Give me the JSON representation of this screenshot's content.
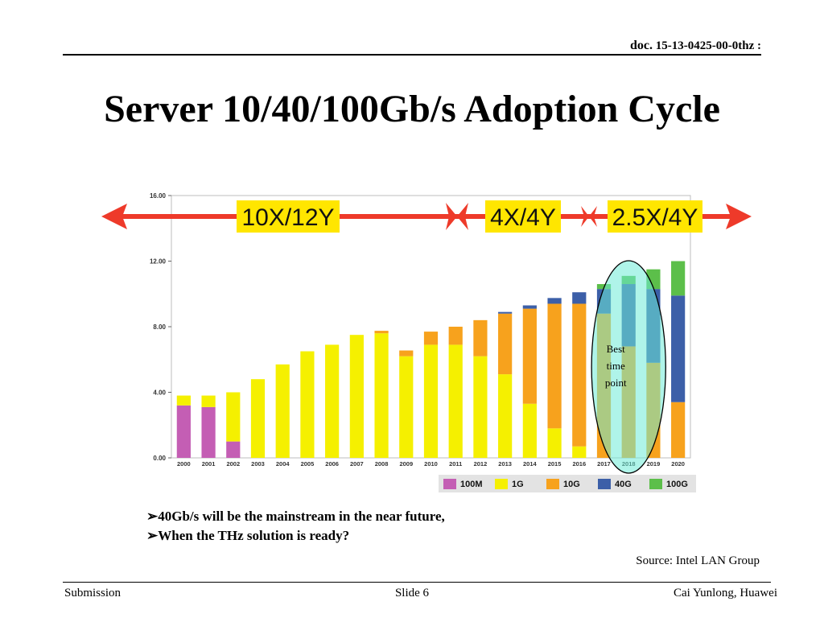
{
  "header": {
    "doc_prefix": "doc.",
    "doc_number": "15-13-0425-00-0thz :"
  },
  "slide": {
    "title": "Server 10/40/100Gb/s Adoption Cycle",
    "bullets": [
      "40Gb/s will be the mainstream in the near future,",
      "When the THz solution is ready?"
    ],
    "source": "Source: Intel LAN Group"
  },
  "footer": {
    "left": "Submission",
    "center": "Slide 6",
    "right": "Cai Yunlong, Huawei"
  },
  "chart_data": {
    "type": "bar",
    "stacked": true,
    "categories": [
      "2000",
      "2001",
      "2002",
      "2003",
      "2004",
      "2005",
      "2006",
      "2007",
      "2008",
      "2009",
      "2010",
      "2011",
      "2012",
      "2013",
      "2014",
      "2015",
      "2016",
      "2017",
      "2018",
      "2019",
      "2020"
    ],
    "ylim": [
      0,
      16
    ],
    "yticks": [
      "0.00",
      "4.00",
      "8.00",
      "12.00",
      "16.00"
    ],
    "series": [
      {
        "name": "100M",
        "color": "#c45eb4",
        "values": [
          3.2,
          3.1,
          1.0,
          0,
          0,
          0,
          0,
          0,
          0,
          0,
          0,
          0,
          0,
          0,
          0,
          0,
          0,
          0,
          0,
          0,
          0
        ]
      },
      {
        "name": "1G",
        "color": "#f5f000",
        "values": [
          0.6,
          0.7,
          3.0,
          4.8,
          5.7,
          6.5,
          6.9,
          7.5,
          7.6,
          6.2,
          6.9,
          6.9,
          6.2,
          5.1,
          3.3,
          1.8,
          0.7,
          0,
          0,
          0,
          0
        ]
      },
      {
        "name": "10G",
        "color": "#f7a21d",
        "values": [
          0,
          0,
          0,
          0,
          0,
          0,
          0,
          0,
          0.15,
          0.35,
          0.8,
          1.1,
          2.2,
          3.7,
          5.8,
          7.6,
          8.7,
          8.8,
          6.8,
          5.8,
          3.4
        ]
      },
      {
        "name": "40G",
        "color": "#3c5fa8",
        "values": [
          0,
          0,
          0,
          0,
          0,
          0,
          0,
          0,
          0,
          0,
          0,
          0,
          0,
          0.1,
          0.2,
          0.35,
          0.7,
          1.5,
          3.8,
          4.5,
          6.5
        ]
      },
      {
        "name": "100G",
        "color": "#5cbf4a",
        "values": [
          0,
          0,
          0,
          0,
          0,
          0,
          0,
          0,
          0,
          0,
          0,
          0,
          0,
          0,
          0,
          0,
          0,
          0.3,
          0.5,
          1.2,
          2.1
        ]
      }
    ],
    "phases": [
      "10X/12Y",
      "4X/4Y",
      "2.5X/4Y"
    ],
    "annotation": "Best time point",
    "legend_position": "bottom",
    "grid": false
  }
}
